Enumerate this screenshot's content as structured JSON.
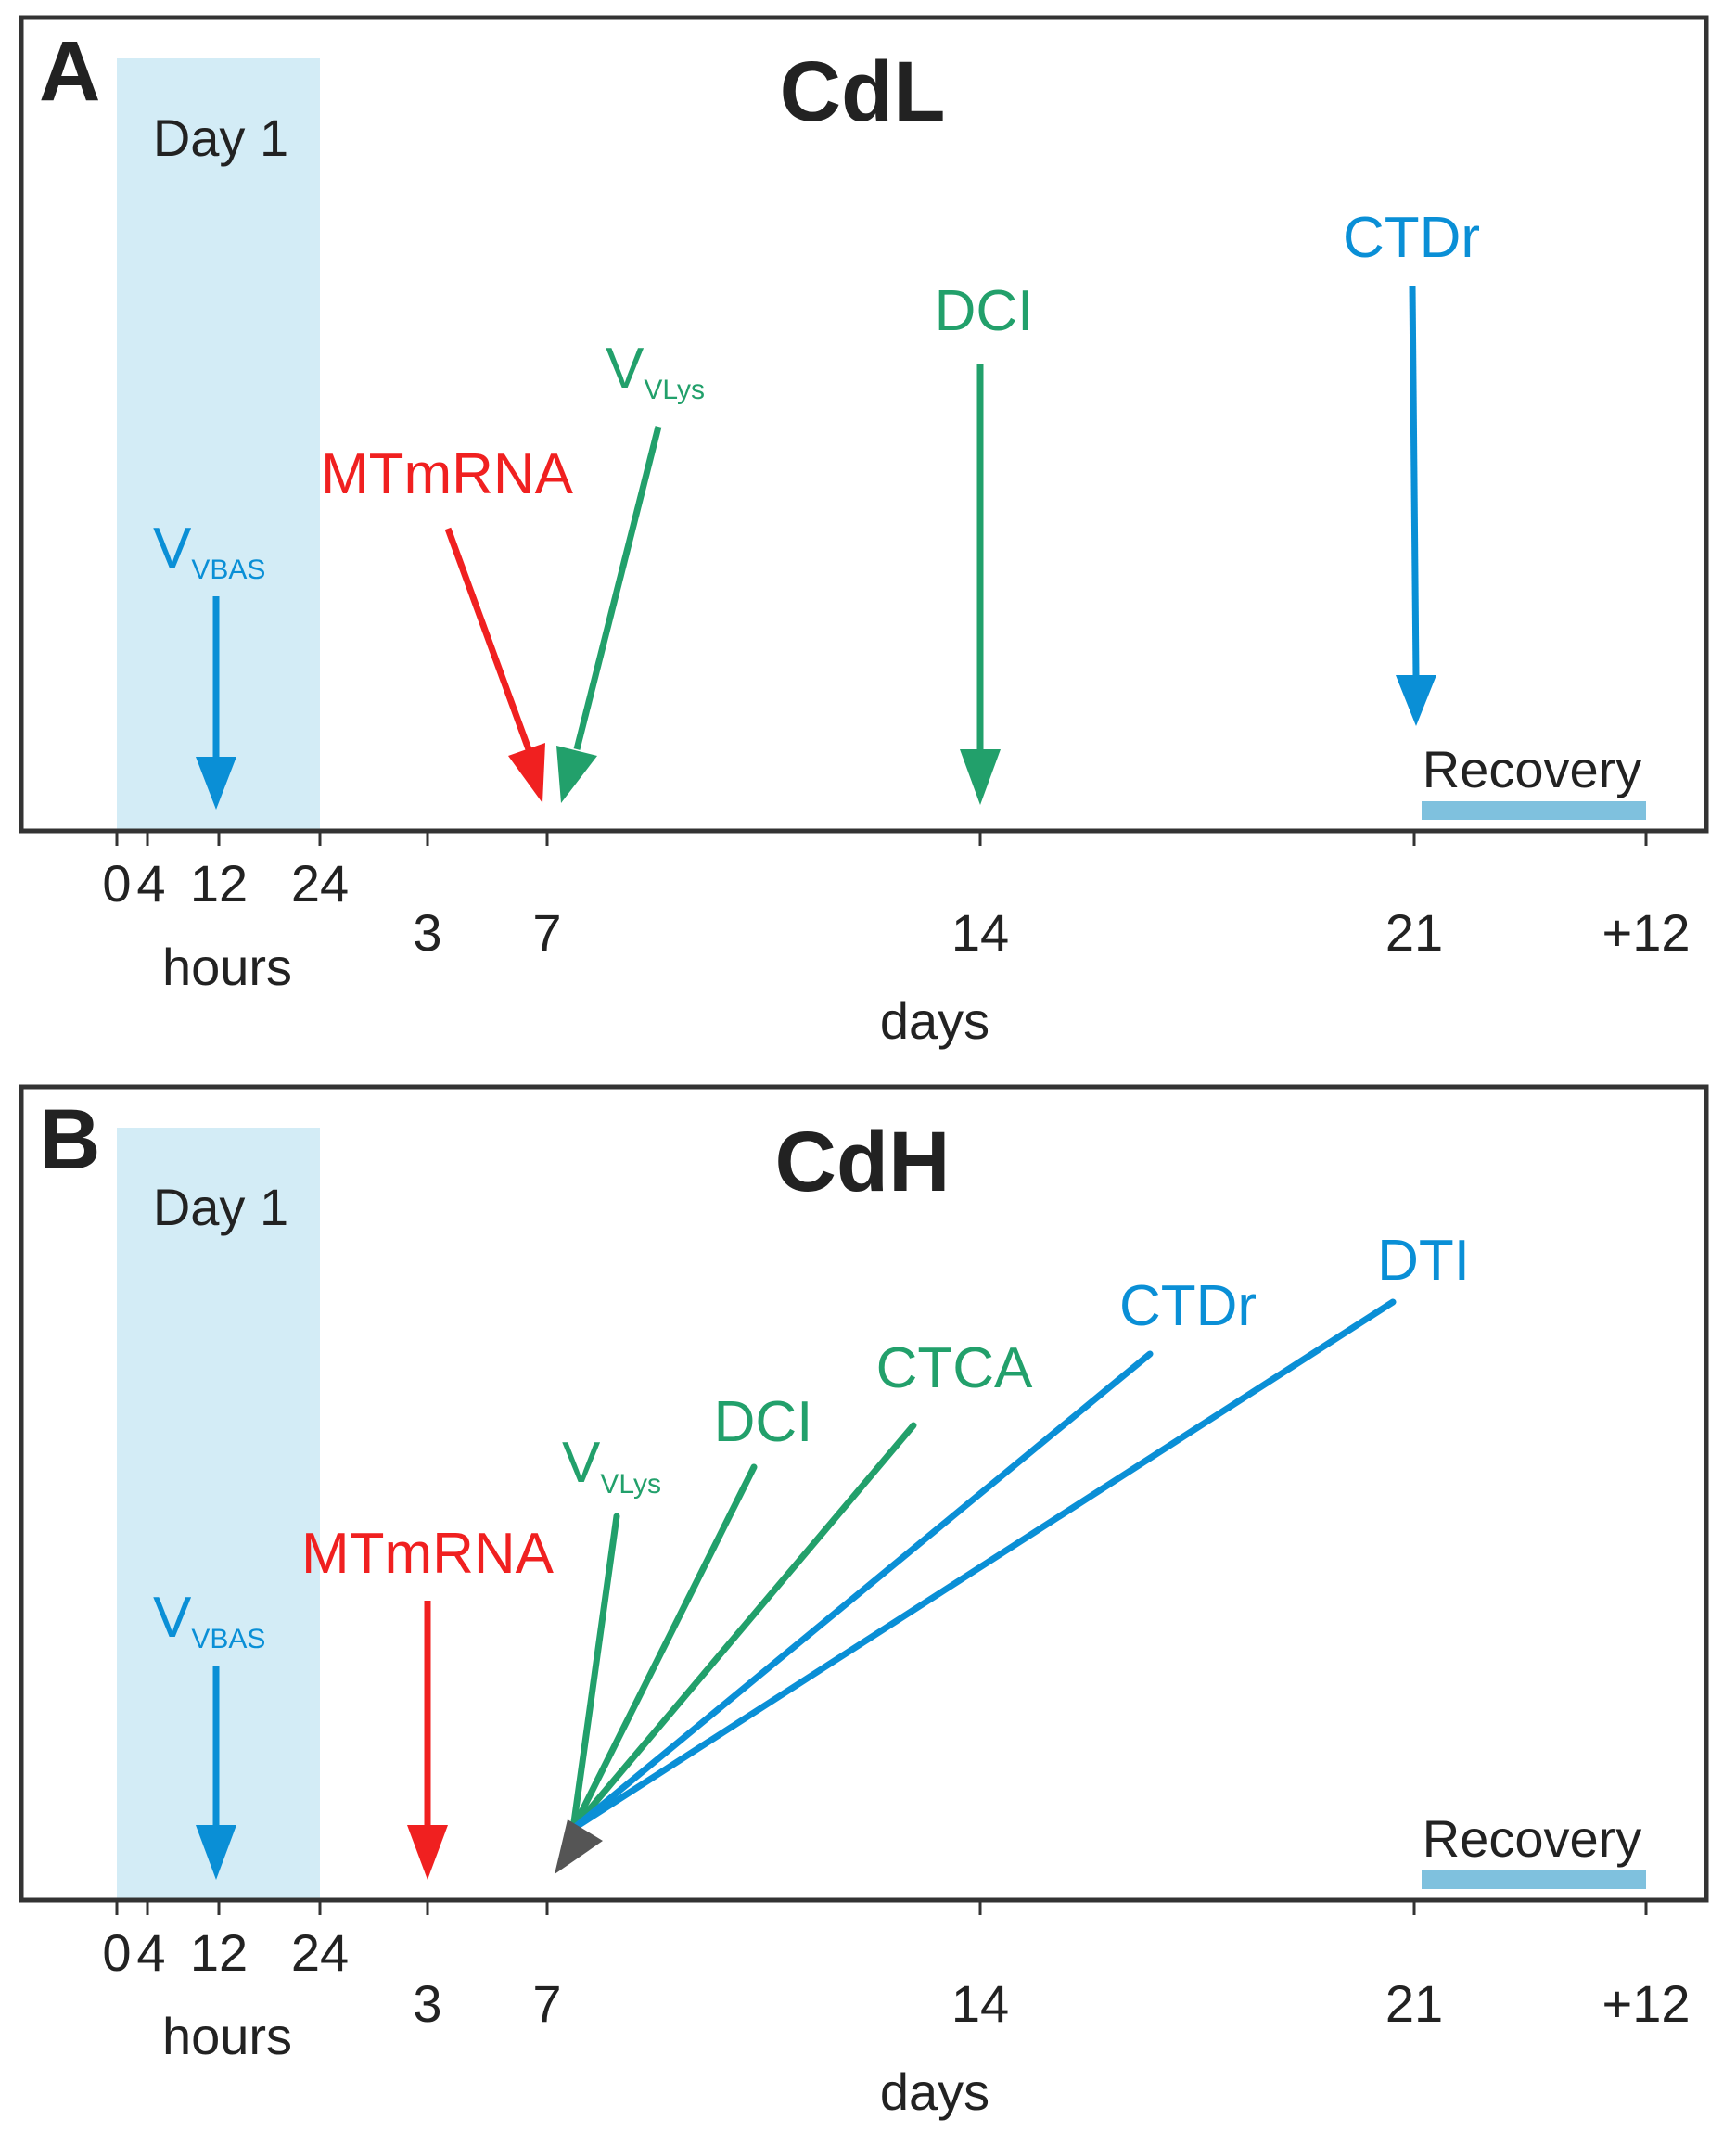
{
  "colors": {
    "blue": "#0a8fd6",
    "green": "#22a06b",
    "red": "#f02020",
    "gray": "#555555",
    "day_band": "#d3ecf6",
    "recovery_bar": "#7fc1de",
    "frame": "#333333"
  },
  "axis": {
    "hour_ticks": [
      "0",
      "4",
      "12",
      "24"
    ],
    "day_ticks": [
      "3",
      "7",
      "14",
      "21",
      "+12"
    ],
    "hours_label": "hours",
    "days_label": "days"
  },
  "panels": [
    {
      "id": "A",
      "letter": "A",
      "title": "CdL",
      "day_band_label": "Day 1",
      "recovery_label": "Recovery",
      "markers": [
        {
          "main": "V",
          "sub": "VBAS",
          "color": "blue",
          "time": "12 hours"
        },
        {
          "main": "MTmRNA",
          "sub": "",
          "color": "red",
          "time": "7 days"
        },
        {
          "main": "V",
          "sub": "VLys",
          "color": "green",
          "time": "7 days"
        },
        {
          "main": "DCI",
          "sub": "",
          "color": "green",
          "time": "14 days"
        },
        {
          "main": "CTDr",
          "sub": "",
          "color": "blue",
          "time": "21 days"
        }
      ]
    },
    {
      "id": "B",
      "letter": "B",
      "title": "CdH",
      "day_band_label": "Day 1",
      "recovery_label": "Recovery",
      "markers": [
        {
          "main": "V",
          "sub": "VBAS",
          "color": "blue",
          "time": "12 hours"
        },
        {
          "main": "MTmRNA",
          "sub": "",
          "color": "red",
          "time": "3 days"
        },
        {
          "main": "V",
          "sub": "VLys",
          "color": "green",
          "time": "7 days"
        },
        {
          "main": "DCI",
          "sub": "",
          "color": "green",
          "time": "7 days"
        },
        {
          "main": "CTCA",
          "sub": "",
          "color": "green",
          "time": "7 days"
        },
        {
          "main": "CTDr",
          "sub": "",
          "color": "blue",
          "time": "7 days"
        },
        {
          "main": "DTI",
          "sub": "",
          "color": "blue",
          "time": "7 days"
        }
      ]
    }
  ]
}
